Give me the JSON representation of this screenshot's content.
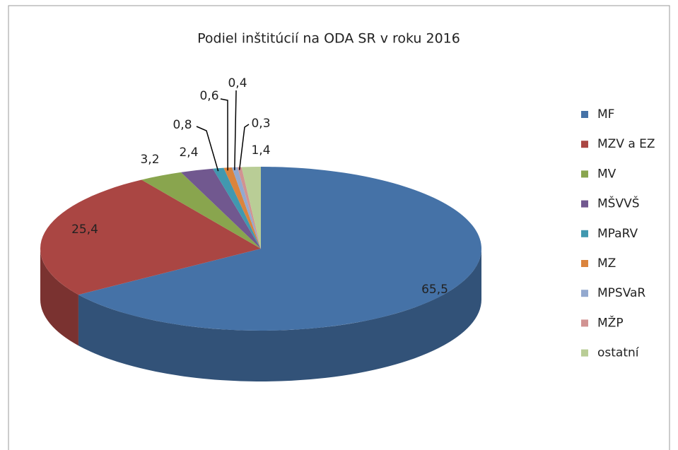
{
  "chart_data": {
    "type": "pie",
    "title": "Podiel inštitúcií na ODA SR v roku 2016",
    "categories": [
      "MF",
      "MZV a EZ",
      "MV",
      "MŠVVŠ",
      "MPaRV",
      "MZ",
      "MPSVaR",
      "MŽP",
      "ostatní"
    ],
    "values": [
      65.5,
      25.4,
      3.2,
      2.4,
      0.8,
      0.6,
      0.4,
      0.3,
      1.4
    ],
    "value_labels": [
      "65,5",
      "25,4",
      "3,2",
      "2,4",
      "0,8",
      "0,6",
      "0,4",
      "0,3",
      "1,4"
    ],
    "colors": [
      "#4572a7",
      "#aa4643",
      "#89a54e",
      "#71588f",
      "#4198af",
      "#db843d",
      "#93a9cf",
      "#d19392",
      "#b9cd96"
    ],
    "legend": "right"
  }
}
